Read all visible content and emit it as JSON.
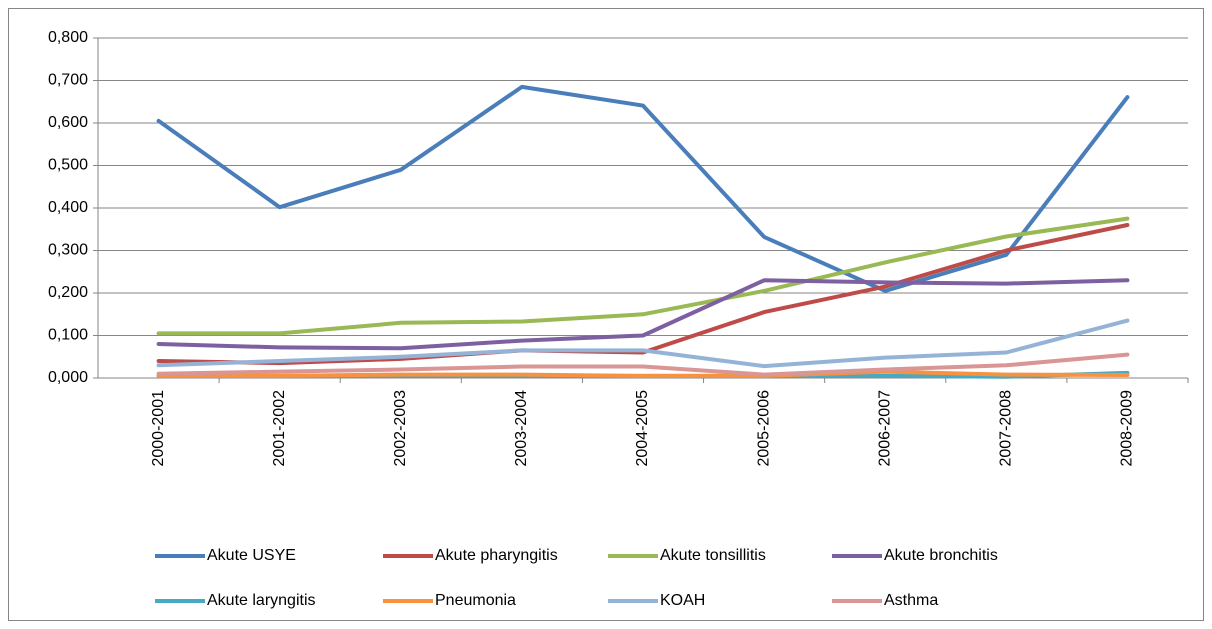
{
  "chart_data": {
    "type": "line",
    "categories": [
      "2000-2001",
      "2001-2002",
      "2002-2003",
      "2003-2004",
      "2004-2005",
      "2005-2006",
      "2006-2007",
      "2007-2008",
      "2008-2009"
    ],
    "series": [
      {
        "name": "Akute USYE",
        "color": "#4a7ebb",
        "values": [
          0.605,
          0.402,
          0.49,
          0.685,
          0.641,
          0.332,
          0.205,
          0.29,
          0.661
        ]
      },
      {
        "name": "Akute pharyngitis",
        "color": "#be4b48",
        "values": [
          0.04,
          0.035,
          0.045,
          0.065,
          0.06,
          0.155,
          0.215,
          0.3,
          0.36
        ]
      },
      {
        "name": "Akute tonsillitis",
        "color": "#98b954",
        "values": [
          0.105,
          0.105,
          0.13,
          0.133,
          0.15,
          0.205,
          0.272,
          0.333,
          0.375
        ]
      },
      {
        "name": "Akute bronchitis",
        "color": "#7d60a0",
        "values": [
          0.08,
          0.072,
          0.07,
          0.088,
          0.1,
          0.23,
          0.225,
          0.222,
          0.23
        ]
      },
      {
        "name": "Akute laryngitis",
        "color": "#46aac5",
        "values": [
          0.005,
          0.005,
          0.005,
          0.005,
          0.005,
          0.005,
          0.005,
          0.003,
          0.012
        ]
      },
      {
        "name": "Pneumonia",
        "color": "#f69240",
        "values": [
          0.005,
          0.005,
          0.008,
          0.008,
          0.005,
          0.005,
          0.015,
          0.008,
          0.007
        ]
      },
      {
        "name": "KOAH",
        "color": "#95b3d7",
        "values": [
          0.03,
          0.04,
          0.05,
          0.065,
          0.065,
          0.028,
          0.048,
          0.06,
          0.135
        ]
      },
      {
        "name": "Asthma",
        "color": "#d99694",
        "values": [
          0.01,
          0.015,
          0.02,
          0.027,
          0.027,
          0.008,
          0.02,
          0.03,
          0.055
        ]
      }
    ],
    "ylim": [
      0,
      0.8
    ],
    "yticks": [
      {
        "value": 0,
        "label": "0,000"
      },
      {
        "value": 0.1,
        "label": "0,100"
      },
      {
        "value": 0.2,
        "label": "0,200"
      },
      {
        "value": 0.3,
        "label": "0,300"
      },
      {
        "value": 0.4,
        "label": "0,400"
      },
      {
        "value": 0.5,
        "label": "0,500"
      },
      {
        "value": 0.6,
        "label": "0,600"
      },
      {
        "value": 0.7,
        "label": "0,700"
      },
      {
        "value": 0.8,
        "label": "0,800"
      }
    ],
    "grid": true,
    "legend": "bottom"
  }
}
